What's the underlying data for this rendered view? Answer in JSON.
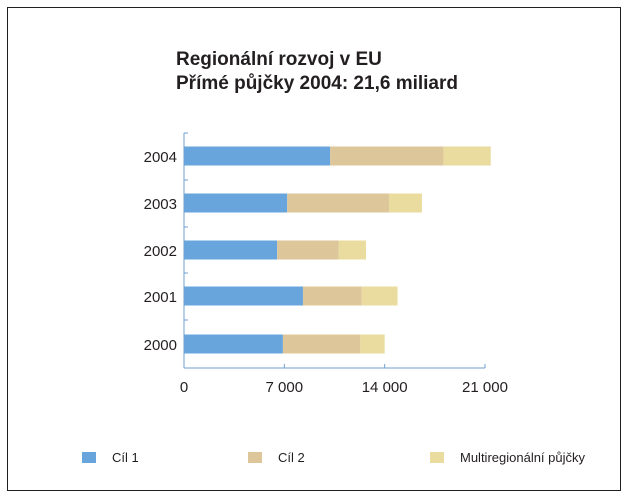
{
  "chart_data": {
    "type": "bar",
    "orientation": "horizontal",
    "stacked": true,
    "title": "Regionální rozvoj v EU",
    "subtitle": "Přímé půjčky 2004: 21,6 miliard",
    "categories": [
      "2004",
      "2003",
      "2002",
      "2001",
      "2000"
    ],
    "series": [
      {
        "name": "Cíl 1",
        "color": "#67a5dc",
        "values": [
          10200,
          7200,
          6500,
          8300,
          6900
        ]
      },
      {
        "name": "Cíl 2",
        "color": "#dcc69a",
        "values": [
          7900,
          7100,
          4300,
          4100,
          5400
        ]
      },
      {
        "name": "Multiregionální půjčky",
        "color": "#e9dc9e",
        "values": [
          3300,
          2300,
          1900,
          2500,
          1700
        ]
      }
    ],
    "xlim": [
      0,
      21000
    ],
    "xticks": [
      0,
      7000,
      14000,
      21000
    ],
    "xtick_labels": [
      "0",
      "7 000",
      "14 000",
      "21 000"
    ],
    "legend_position": "bottom",
    "grid": false
  }
}
